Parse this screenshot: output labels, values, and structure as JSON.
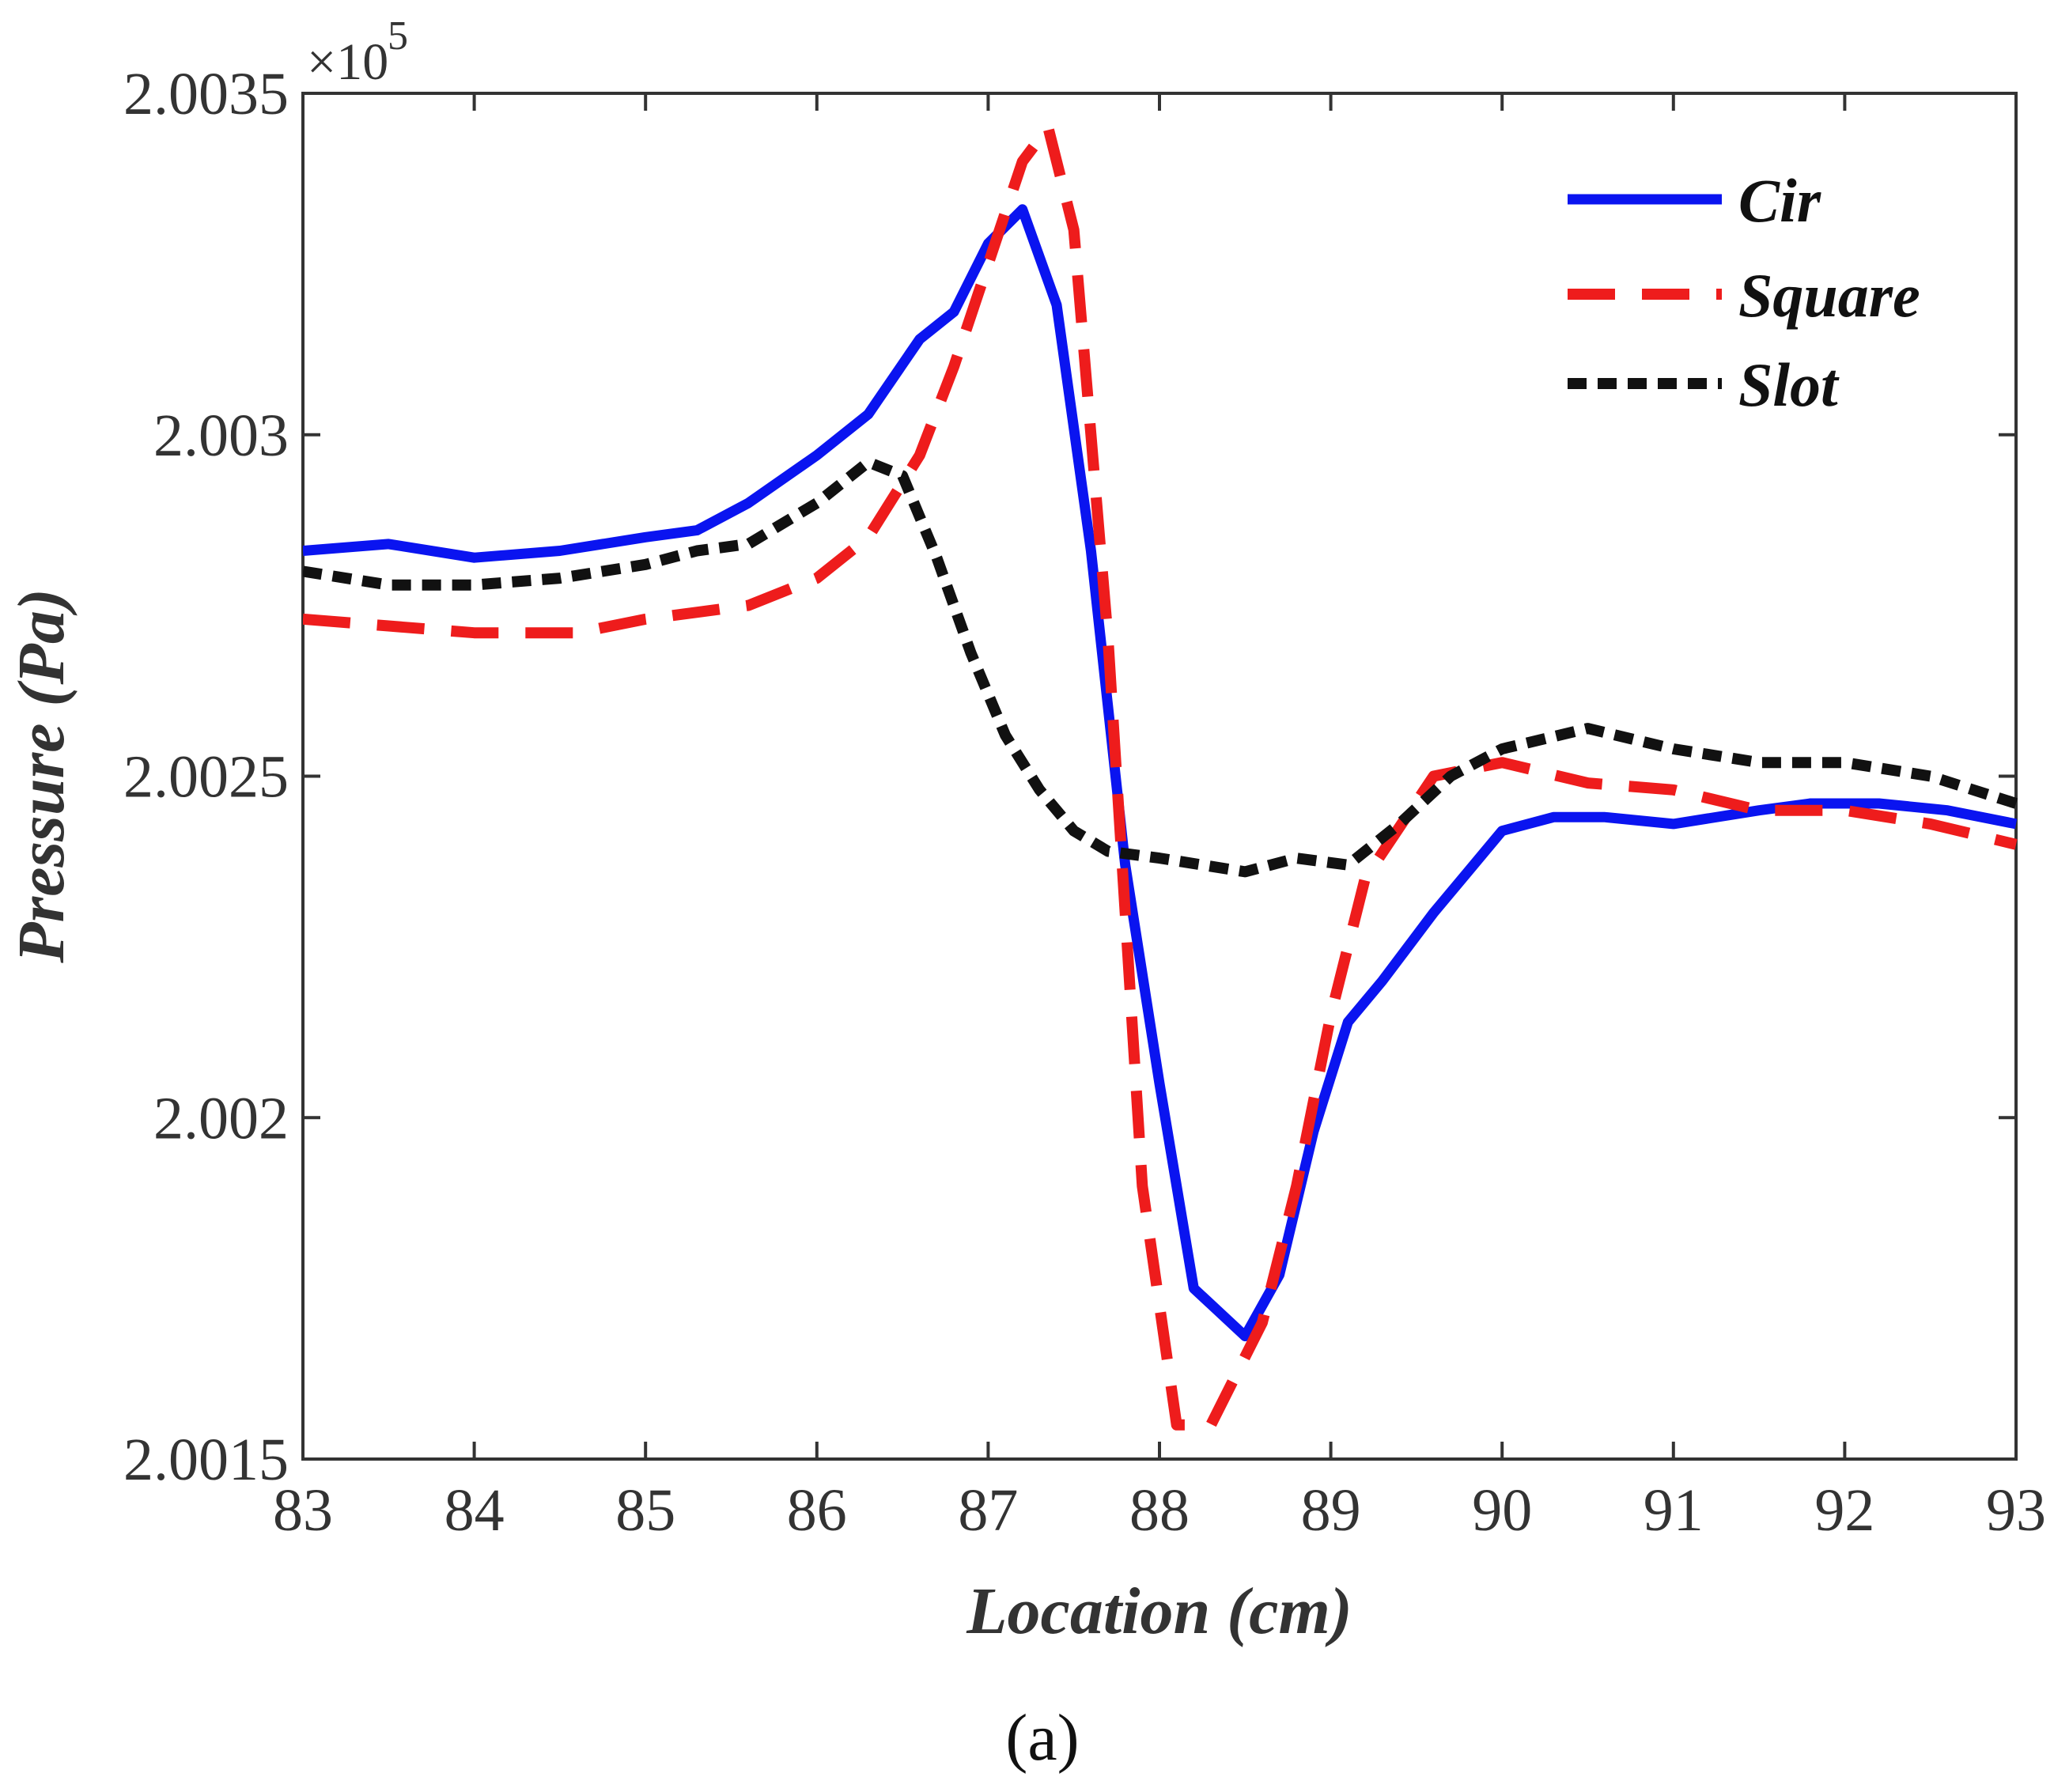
{
  "chart_data": {
    "type": "line",
    "title": "",
    "xlabel": "Location (cm)",
    "ylabel": "Pressure (Pa)",
    "y_multiplier": "×10",
    "y_multiplier_exponent": "5",
    "xlim": [
      83,
      93
    ],
    "ylim": [
      2.0015,
      2.0035
    ],
    "x_ticks": [
      "83",
      "84",
      "85",
      "86",
      "87",
      "88",
      "89",
      "90",
      "91",
      "92",
      "93"
    ],
    "y_ticks": [
      "2.0015",
      "2.002",
      "2.0025",
      "2.003",
      "2.0035"
    ],
    "y_tick_values": [
      2.0015,
      2.002,
      2.0025,
      2.003,
      2.0035
    ],
    "legend_position": "top-right",
    "grid": false,
    "series": [
      {
        "name": "Cir",
        "color": "#0a14f0",
        "dash": "solid",
        "x": [
          83,
          83.5,
          84,
          84.5,
          85,
          85.3,
          85.6,
          86,
          86.3,
          86.6,
          86.8,
          87,
          87.2,
          87.4,
          87.6,
          87.8,
          88,
          88.2,
          88.5,
          88.7,
          88.9,
          89.1,
          89.3,
          89.6,
          89.8,
          90,
          90.3,
          90.6,
          91,
          91.5,
          91.8,
          92.2,
          92.6,
          93
        ],
        "values": [
          2.00283,
          2.00284,
          2.00282,
          2.00283,
          2.00285,
          2.00286,
          2.0029,
          2.00297,
          2.00303,
          2.00314,
          2.00318,
          2.00328,
          2.00333,
          2.00319,
          2.00283,
          2.00237,
          2.00205,
          2.00175,
          2.00168,
          2.00177,
          2.00198,
          2.00214,
          2.0022,
          2.0023,
          2.00236,
          2.00242,
          2.00244,
          2.00244,
          2.00243,
          2.00245,
          2.00246,
          2.00246,
          2.00245,
          2.00243
        ]
      },
      {
        "name": "Square",
        "color": "#ee1c1c",
        "dash": "long-dash",
        "x": [
          83,
          83.5,
          84,
          84.6,
          85,
          85.6,
          86,
          86.3,
          86.6,
          86.8,
          87,
          87.2,
          87.35,
          87.5,
          87.7,
          87.9,
          88.1,
          88.3,
          88.6,
          88.8,
          89,
          89.2,
          89.6,
          90,
          90.5,
          91,
          91.5,
          92,
          92.5,
          93
        ],
        "values": [
          2.00273,
          2.00272,
          2.00271,
          2.00271,
          2.00273,
          2.00275,
          2.00279,
          2.00285,
          2.00297,
          2.0031,
          2.00325,
          2.0034,
          2.00345,
          2.0033,
          2.0027,
          2.0019,
          2.00155,
          2.00155,
          2.0017,
          2.0019,
          2.00215,
          2.00235,
          2.0025,
          2.00252,
          2.00249,
          2.00248,
          2.00245,
          2.00245,
          2.00243,
          2.0024
        ]
      },
      {
        "name": "Slot",
        "color": "#111111",
        "dash": "short-dash",
        "x": [
          83,
          83.5,
          84,
          84.5,
          85,
          85.3,
          85.6,
          86,
          86.3,
          86.5,
          86.7,
          86.9,
          87.1,
          87.3,
          87.5,
          87.7,
          88,
          88.5,
          88.8,
          89.1,
          89.4,
          89.7,
          90,
          90.5,
          91,
          91.5,
          92,
          92.5,
          93
        ],
        "values": [
          2.0028,
          2.00278,
          2.00278,
          2.00279,
          2.00281,
          2.00283,
          2.00284,
          2.0029,
          2.00296,
          2.00294,
          2.00282,
          2.00268,
          2.00256,
          2.00248,
          2.00242,
          2.00239,
          2.00238,
          2.00236,
          2.00238,
          2.00237,
          2.00243,
          2.0025,
          2.00254,
          2.00257,
          2.00254,
          2.00252,
          2.00252,
          2.0025,
          2.00246
        ]
      }
    ]
  },
  "caption": "(a)"
}
